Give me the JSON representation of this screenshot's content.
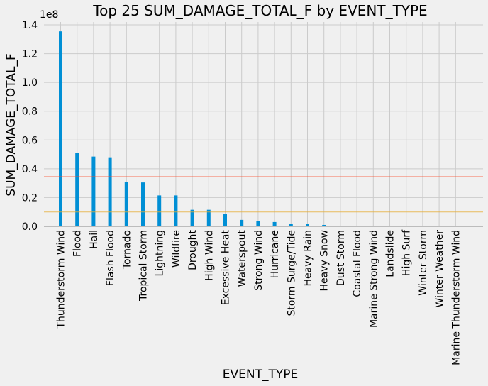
{
  "chart_data": {
    "type": "bar",
    "title": "Top 25 SUM_DAMAGE_TOTAL_F by EVENT_TYPE",
    "xlabel": "EVENT_TYPE",
    "ylabel": "SUM_DAMAGE_TOTAL_F",
    "y_offset_label": "1e8",
    "y_scale": 100000000,
    "ylim": [
      0,
      1.42
    ],
    "yticks": [
      "0.0",
      "0.2",
      "0.4",
      "0.6",
      "0.8",
      "1.0",
      "1.2",
      "1.4"
    ],
    "grid": true,
    "bar_color": "#008fd5",
    "reference_lines": [
      {
        "value": 0.345,
        "color": "#fc4f30"
      },
      {
        "value": 0.1,
        "color": "#e5ae38"
      }
    ],
    "categories": [
      "Thunderstorm Wind",
      "Flood",
      "Hail",
      "Flash Flood",
      "Tornado",
      "Tropical Storm",
      "Lightning",
      "Wildfire",
      "Drought",
      "High Wind",
      "Excessive Heat",
      "Waterspout",
      "Strong Wind",
      "Hurricane",
      "Storm Surge/Tide",
      "Heavy Rain",
      "Heavy Snow",
      "Dust Storm",
      "Coastal Flood",
      "Marine Strong Wind",
      "Landslide",
      "High Surf",
      "Winter Storm",
      "Winter Weather",
      "Marine Thunderstorm Wind"
    ],
    "values": [
      1.355,
      0.51,
      0.485,
      0.48,
      0.31,
      0.305,
      0.215,
      0.215,
      0.115,
      0.115,
      0.085,
      0.045,
      0.035,
      0.03,
      0.015,
      0.015,
      0.01,
      0.003,
      0.002,
      0.002,
      0.001,
      0.001,
      0.001,
      0.001,
      0.001
    ]
  }
}
